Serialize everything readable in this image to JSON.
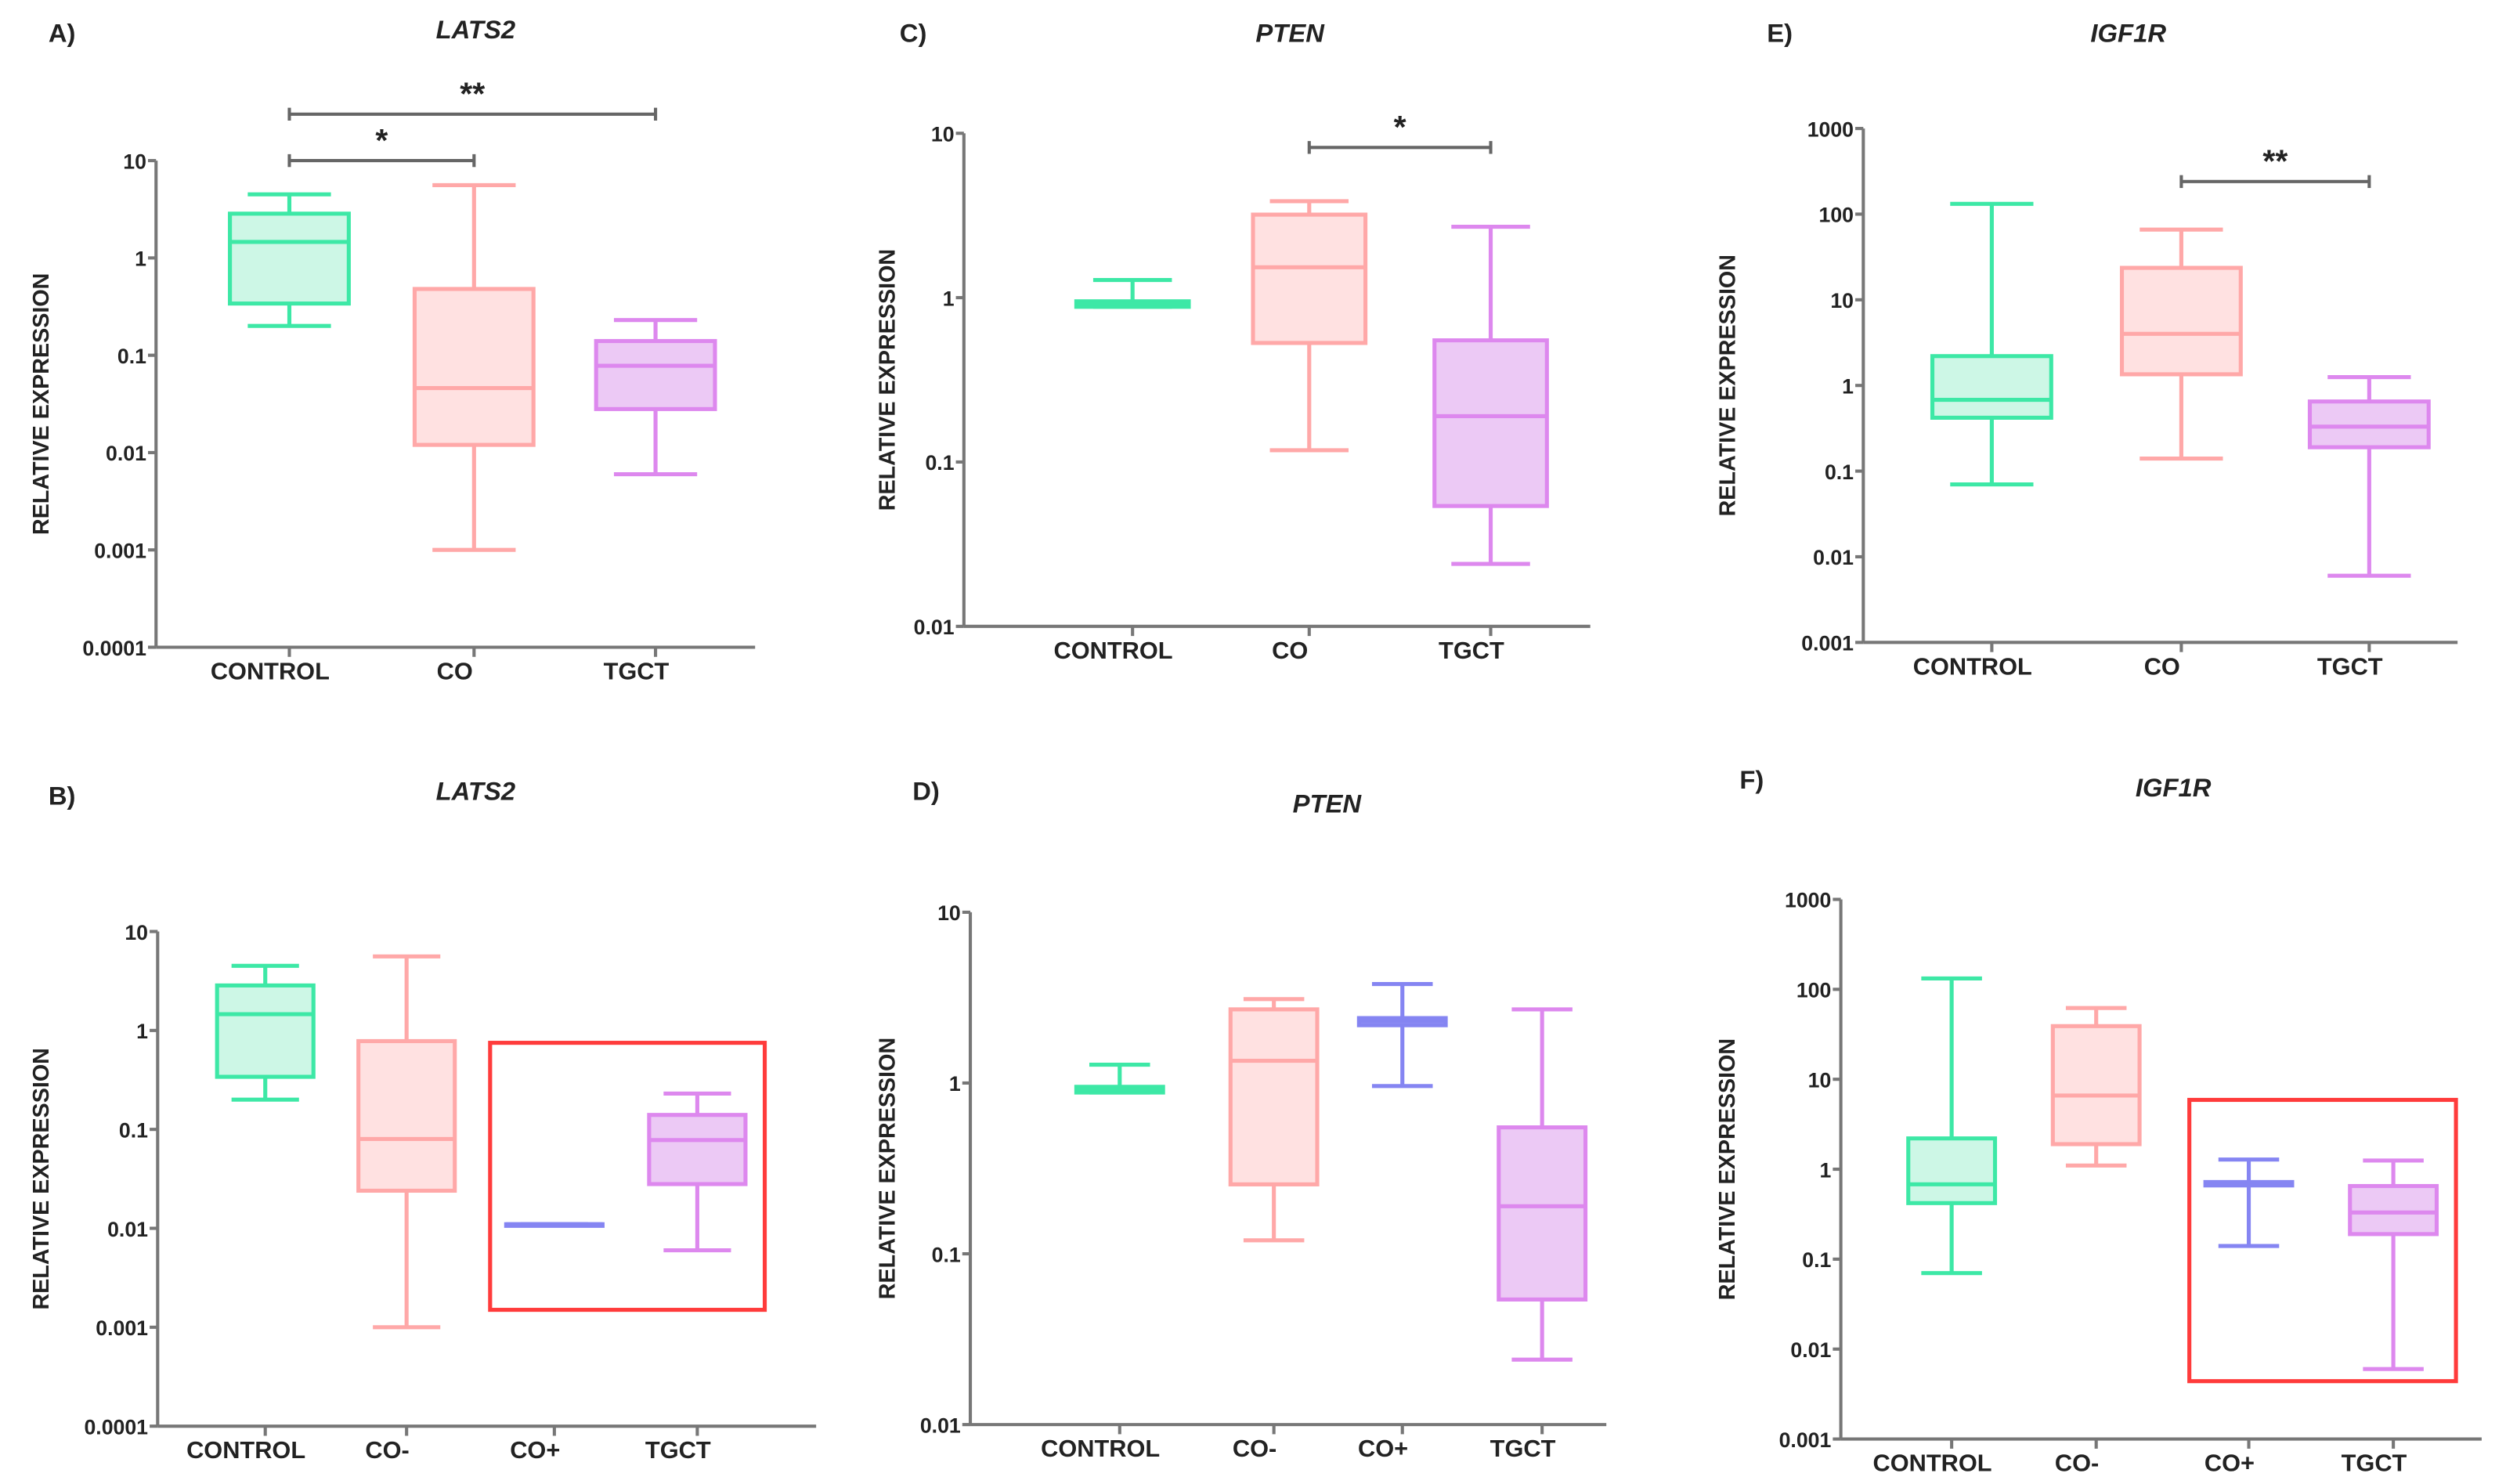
{
  "colors": {
    "CONTROL": {
      "stroke": "#3de8a6",
      "fill": "#cdf7e6"
    },
    "CO": {
      "stroke": "#ffa8a8",
      "fill": "#ffe1e1"
    },
    "CO-": {
      "stroke": "#ffa8a8",
      "fill": "#ffe1e1"
    },
    "CO+": {
      "stroke": "#8585f2",
      "fill": "#dcdcfb"
    },
    "TGCT": {
      "stroke": "#dd88ee",
      "fill": "#ecc9f5"
    },
    "highlight": "#ff3b3b",
    "axis": "#777777",
    "bracket": "#666666"
  },
  "chart_data": [
    {
      "panel": "A)",
      "type": "box",
      "title": "LATS2",
      "ylabel": "RELATIVE EXPRESSION",
      "yscale": "log",
      "ylim": [
        0.0001,
        10
      ],
      "yticks": [
        "0.0001",
        "0.001",
        "0.01",
        "0.1",
        "1",
        "10"
      ],
      "categories": [
        "CONTROL",
        "CO",
        "TGCT"
      ],
      "boxes": [
        {
          "min": 0.2,
          "q1": 0.34,
          "median": 1.46,
          "q3": 2.85,
          "max": 4.5
        },
        {
          "min": 0.001,
          "q1": 0.012,
          "median": 0.046,
          "q3": 0.48,
          "max": 5.6
        },
        {
          "min": 0.006,
          "q1": 0.028,
          "median": 0.078,
          "q3": 0.14,
          "max": 0.23
        }
      ],
      "significance": [
        {
          "from": "CONTROL",
          "to": "CO",
          "label": "*",
          "y": 10
        },
        {
          "from": "CONTROL",
          "to": "TGCT",
          "label": "**",
          "y": 30
        }
      ]
    },
    {
      "panel": "B)",
      "type": "box",
      "title": "LATS2",
      "ylabel": "RELATIVE EXPRESSION",
      "yscale": "log",
      "ylim": [
        0.0001,
        10
      ],
      "yticks": [
        "0.0001",
        "0.001",
        "0.01",
        "0.1",
        "1",
        "10"
      ],
      "categories": [
        "CONTROL",
        "CO-",
        "CO+",
        "TGCT"
      ],
      "boxes": [
        {
          "min": 0.2,
          "q1": 0.34,
          "median": 1.46,
          "q3": 2.85,
          "max": 4.5
        },
        {
          "min": 0.001,
          "q1": 0.024,
          "median": 0.08,
          "q3": 0.78,
          "max": 5.6
        },
        {
          "min": 0.011,
          "q1": 0.011,
          "median": 0.011,
          "q3": 0.011,
          "max": 0.011
        },
        {
          "min": 0.006,
          "q1": 0.028,
          "median": 0.078,
          "q3": 0.14,
          "max": 0.23
        }
      ],
      "highlight": {
        "from": "CO+",
        "to": "TGCT",
        "y_range": [
          0.0015,
          0.75
        ]
      }
    },
    {
      "panel": "C)",
      "type": "box",
      "title": "PTEN",
      "ylabel": "RELATIVE EXPRESSION",
      "yscale": "log",
      "ylim": [
        0.01,
        10
      ],
      "yticks": [
        "0.01",
        "0.1",
        "1",
        "10"
      ],
      "categories": [
        "CONTROL",
        "CO",
        "TGCT"
      ],
      "boxes": [
        {
          "min": 0.88,
          "q1": 0.88,
          "median": 0.92,
          "q3": 0.95,
          "max": 1.28
        },
        {
          "min": 0.118,
          "q1": 0.53,
          "median": 1.53,
          "q3": 3.2,
          "max": 3.86
        },
        {
          "min": 0.024,
          "q1": 0.054,
          "median": 0.19,
          "q3": 0.55,
          "max": 2.7
        }
      ],
      "significance": [
        {
          "from": "CO",
          "to": "TGCT",
          "label": "*",
          "y": 8.2
        }
      ]
    },
    {
      "panel": "D)",
      "type": "box",
      "title": "PTEN",
      "ylabel": "RELATIVE EXPRESSION",
      "yscale": "log",
      "ylim": [
        0.01,
        10
      ],
      "yticks": [
        "0.01",
        "0.1",
        "1",
        "10"
      ],
      "categories": [
        "CONTROL",
        "CO-",
        "CO+",
        "TGCT"
      ],
      "boxes": [
        {
          "min": 0.88,
          "q1": 0.88,
          "median": 0.92,
          "q3": 0.95,
          "max": 1.28
        },
        {
          "min": 0.12,
          "q1": 0.255,
          "median": 1.35,
          "q3": 2.7,
          "max": 3.1
        },
        {
          "min": 0.96,
          "q1": 2.18,
          "median": 2.3,
          "q3": 2.4,
          "max": 3.8
        },
        {
          "min": 0.024,
          "q1": 0.054,
          "median": 0.19,
          "q3": 0.55,
          "max": 2.7
        }
      ]
    },
    {
      "panel": "E)",
      "type": "box",
      "title": "IGF1R",
      "ylabel": "RELATIVE EXPRESSION",
      "yscale": "log",
      "ylim": [
        0.001,
        1000
      ],
      "yticks": [
        "0.001",
        "0.01",
        "0.1",
        "1",
        "10",
        "100",
        "1000"
      ],
      "categories": [
        "CONTROL",
        "CO",
        "TGCT"
      ],
      "boxes": [
        {
          "min": 0.07,
          "q1": 0.42,
          "median": 0.68,
          "q3": 2.2,
          "max": 132
        },
        {
          "min": 0.14,
          "q1": 1.35,
          "median": 4.0,
          "q3": 23.6,
          "max": 66
        },
        {
          "min": 0.006,
          "q1": 0.19,
          "median": 0.33,
          "q3": 0.65,
          "max": 1.25
        }
      ],
      "significance": [
        {
          "from": "CO",
          "to": "TGCT",
          "label": "**",
          "y": 240
        }
      ]
    },
    {
      "panel": "F)",
      "type": "box",
      "title": "IGF1R",
      "ylabel": "RELATIVE EXPRESSION",
      "yscale": "log",
      "ylim": [
        0.001,
        1000
      ],
      "yticks": [
        "0.001",
        "0.01",
        "0.1",
        "1",
        "10",
        "100",
        "1000"
      ],
      "categories": [
        "CONTROL",
        "CO-",
        "CO+",
        "TGCT"
      ],
      "boxes": [
        {
          "min": 0.07,
          "q1": 0.42,
          "median": 0.68,
          "q3": 2.2,
          "max": 132
        },
        {
          "min": 1.1,
          "q1": 1.9,
          "median": 6.6,
          "q3": 39,
          "max": 62
        },
        {
          "min": 0.14,
          "q1": 0.66,
          "median": 0.69,
          "q3": 0.72,
          "max": 1.28
        },
        {
          "min": 0.006,
          "q1": 0.19,
          "median": 0.33,
          "q3": 0.65,
          "max": 1.25
        }
      ],
      "highlight": {
        "from": "CO+",
        "to": "TGCT",
        "y_range": [
          0.0044,
          5.9
        ]
      }
    }
  ]
}
